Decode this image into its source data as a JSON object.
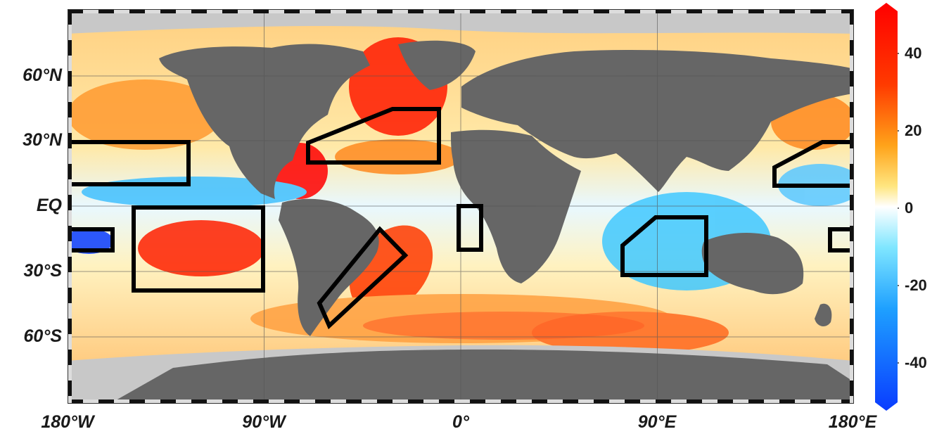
{
  "map": {
    "projection": "equirectangular",
    "lat_labels": [
      "60°N",
      "30°N",
      "EQ",
      "30°S",
      "60°S"
    ],
    "lon_labels": [
      "180°W",
      "90°W",
      "0°",
      "90°E",
      "180°E"
    ],
    "land_color": "#666666",
    "ice_color": "#c8c8c8",
    "boxes_outline_color": "#000000",
    "highlighted_regions_count": 9
  },
  "colorbar": {
    "ticks": [
      "40",
      "20",
      "0",
      "-20",
      "-40"
    ],
    "range": [
      -50,
      50
    ],
    "colors": [
      "#0a3cff",
      "#1ea0ff",
      "#7fe6ff",
      "#ffffff",
      "#ffe680",
      "#ffa31a",
      "#ff3a00",
      "#ff0000"
    ]
  }
}
